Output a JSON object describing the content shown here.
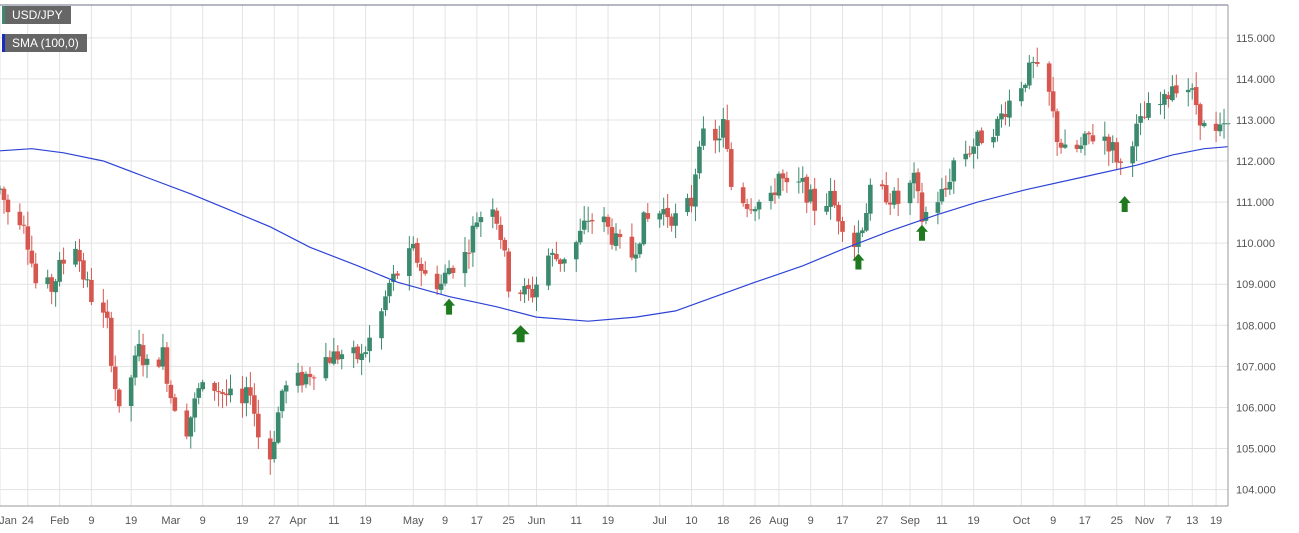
{
  "chart_data": {
    "type": "candlestick",
    "symbol": "USD/JPY",
    "indicator_label": "SMA (100,0)",
    "colors": {
      "up": "#3b8a6e",
      "down": "#d6574f",
      "sma": "#2d44d6",
      "arrow": "#1f7a1f",
      "grid": "#e3e3e3",
      "axis_text": "#555555",
      "symbol_swatch": "#3b8a6e",
      "indicator_swatch": "#1a2bc4"
    },
    "grid": true,
    "y_axis": {
      "position": "right",
      "min": 103.6,
      "max": 115.8,
      "ticks": [
        "104.000",
        "105.000",
        "106.000",
        "107.000",
        "108.000",
        "109.000",
        "110.000",
        "111.000",
        "112.000",
        "113.000",
        "114.000",
        "115.000"
      ]
    },
    "x_axis": {
      "start": "2018-01-17",
      "end": "2018-11-22",
      "ticks": [
        {
          "date": "2018-01-17",
          "label": "Jan"
        },
        {
          "date": "2018-01-24",
          "label": "24"
        },
        {
          "date": "2018-02-01",
          "label": "Feb"
        },
        {
          "date": "2018-02-09",
          "label": "9"
        },
        {
          "date": "2018-02-19",
          "label": "19"
        },
        {
          "date": "2018-03-01",
          "label": "Mar"
        },
        {
          "date": "2018-03-09",
          "label": "9"
        },
        {
          "date": "2018-03-19",
          "label": "19"
        },
        {
          "date": "2018-03-27",
          "label": "27"
        },
        {
          "date": "2018-04-02",
          "label": "Apr"
        },
        {
          "date": "2018-04-11",
          "label": "11"
        },
        {
          "date": "2018-04-19",
          "label": "19"
        },
        {
          "date": "2018-05-01",
          "label": "May"
        },
        {
          "date": "2018-05-09",
          "label": "9"
        },
        {
          "date": "2018-05-17",
          "label": "17"
        },
        {
          "date": "2018-05-25",
          "label": "25"
        },
        {
          "date": "2018-06-01",
          "label": "Jun"
        },
        {
          "date": "2018-06-11",
          "label": "11"
        },
        {
          "date": "2018-06-19",
          "label": "19"
        },
        {
          "date": "2018-07-02",
          "label": "Jul"
        },
        {
          "date": "2018-07-10",
          "label": "10"
        },
        {
          "date": "2018-07-18",
          "label": "18"
        },
        {
          "date": "2018-07-26",
          "label": "26"
        },
        {
          "date": "2018-08-01",
          "label": "Aug"
        },
        {
          "date": "2018-08-09",
          "label": "9"
        },
        {
          "date": "2018-08-17",
          "label": "17"
        },
        {
          "date": "2018-08-27",
          "label": "27"
        },
        {
          "date": "2018-09-03",
          "label": "Sep"
        },
        {
          "date": "2018-09-11",
          "label": "11"
        },
        {
          "date": "2018-09-19",
          "label": "19"
        },
        {
          "date": "2018-10-01",
          "label": "Oct"
        },
        {
          "date": "2018-10-09",
          "label": "9"
        },
        {
          "date": "2018-10-17",
          "label": "17"
        },
        {
          "date": "2018-10-25",
          "label": "25"
        },
        {
          "date": "2018-11-01",
          "label": "Nov"
        },
        {
          "date": "2018-11-07",
          "label": "7"
        },
        {
          "date": "2018-11-13",
          "label": "13"
        },
        {
          "date": "2018-11-19",
          "label": "19"
        }
      ]
    },
    "price_path": [
      [
        "2018-01-17",
        111.3
      ],
      [
        "2018-01-19",
        110.8
      ],
      [
        "2018-01-23",
        110.6
      ],
      [
        "2018-01-26",
        109.0
      ],
      [
        "2018-01-30",
        108.9
      ],
      [
        "2018-02-01",
        109.4
      ],
      [
        "2018-02-05",
        110.0
      ],
      [
        "2018-02-07",
        109.2
      ],
      [
        "2018-02-09",
        108.7
      ],
      [
        "2018-02-13",
        108.0
      ],
      [
        "2018-02-15",
        106.5
      ],
      [
        "2018-02-16",
        105.8
      ],
      [
        "2018-02-21",
        107.4
      ],
      [
        "2018-02-23",
        107.0
      ],
      [
        "2018-02-27",
        107.3
      ],
      [
        "2018-03-01",
        106.3
      ],
      [
        "2018-03-05",
        105.5
      ],
      [
        "2018-03-08",
        106.4
      ],
      [
        "2018-03-12",
        106.5
      ],
      [
        "2018-03-15",
        106.3
      ],
      [
        "2018-03-19",
        106.0
      ],
      [
        "2018-03-21",
        106.5
      ],
      [
        "2018-03-23",
        105.3
      ],
      [
        "2018-03-26",
        104.8
      ],
      [
        "2018-03-29",
        106.4
      ],
      [
        "2018-04-03",
        106.7
      ],
      [
        "2018-04-09",
        107.2
      ],
      [
        "2018-04-13",
        107.3
      ],
      [
        "2018-04-18",
        107.2
      ],
      [
        "2018-04-23",
        108.3
      ],
      [
        "2018-04-25",
        109.0
      ],
      [
        "2018-05-01",
        109.8
      ],
      [
        "2018-05-04",
        109.2
      ],
      [
        "2018-05-08",
        109.0
      ],
      [
        "2018-05-10",
        109.4
      ],
      [
        "2018-05-14",
        109.7
      ],
      [
        "2018-05-17",
        110.6
      ],
      [
        "2018-05-21",
        111.0
      ],
      [
        "2018-05-23",
        110.2
      ],
      [
        "2018-05-25",
        109.0
      ],
      [
        "2018-05-29",
        108.8
      ],
      [
        "2018-05-31",
        108.8
      ],
      [
        "2018-06-04",
        109.7
      ],
      [
        "2018-06-07",
        109.6
      ],
      [
        "2018-06-11",
        110.0
      ],
      [
        "2018-06-14",
        110.6
      ],
      [
        "2018-06-18",
        110.5
      ],
      [
        "2018-06-21",
        110.0
      ],
      [
        "2018-06-25",
        109.7
      ],
      [
        "2018-06-28",
        110.5
      ],
      [
        "2018-07-03",
        110.8
      ],
      [
        "2018-07-06",
        110.6
      ],
      [
        "2018-07-10",
        111.0
      ],
      [
        "2018-07-12",
        112.6
      ],
      [
        "2018-07-16",
        112.4
      ],
      [
        "2018-07-18",
        112.9
      ],
      [
        "2018-07-20",
        111.4
      ],
      [
        "2018-07-24",
        111.0
      ],
      [
        "2018-07-26",
        111.0
      ],
      [
        "2018-07-30",
        111.0
      ],
      [
        "2018-08-01",
        111.7
      ],
      [
        "2018-08-03",
        111.3
      ],
      [
        "2018-08-07",
        111.4
      ],
      [
        "2018-08-10",
        110.9
      ],
      [
        "2018-08-14",
        111.1
      ],
      [
        "2018-08-16",
        110.7
      ],
      [
        "2018-08-20",
        110.0
      ],
      [
        "2018-08-22",
        110.5
      ],
      [
        "2018-08-24",
        111.2
      ],
      [
        "2018-08-28",
        111.2
      ],
      [
        "2018-08-31",
        111.0
      ],
      [
        "2018-09-04",
        111.5
      ],
      [
        "2018-09-06",
        110.6
      ],
      [
        "2018-09-10",
        111.1
      ],
      [
        "2018-09-12",
        111.3
      ],
      [
        "2018-09-14",
        112.0
      ],
      [
        "2018-09-18",
        112.3
      ],
      [
        "2018-09-21",
        112.6
      ],
      [
        "2018-09-25",
        112.9
      ],
      [
        "2018-09-27",
        113.3
      ],
      [
        "2018-10-01",
        113.9
      ],
      [
        "2018-10-04",
        114.3
      ],
      [
        "2018-10-08",
        113.6
      ],
      [
        "2018-10-10",
        112.6
      ],
      [
        "2018-10-12",
        112.2
      ],
      [
        "2018-10-16",
        112.3
      ],
      [
        "2018-10-18",
        112.6
      ],
      [
        "2018-10-22",
        112.6
      ],
      [
        "2018-10-24",
        112.3
      ],
      [
        "2018-10-26",
        111.9
      ],
      [
        "2018-10-29",
        112.6
      ],
      [
        "2018-10-31",
        112.9
      ],
      [
        "2018-11-02",
        113.2
      ],
      [
        "2018-11-06",
        113.4
      ],
      [
        "2018-11-08",
        113.9
      ],
      [
        "2018-11-12",
        113.8
      ],
      [
        "2018-11-14",
        113.4
      ],
      [
        "2018-11-16",
        112.8
      ],
      [
        "2018-11-19",
        112.6
      ],
      [
        "2018-11-21",
        112.8
      ]
    ],
    "sma_series": [
      [
        "2018-01-17",
        112.25
      ],
      [
        "2018-01-25",
        112.3
      ],
      [
        "2018-02-02",
        112.2
      ],
      [
        "2018-02-12",
        112.0
      ],
      [
        "2018-02-23",
        111.6
      ],
      [
        "2018-03-06",
        111.2
      ],
      [
        "2018-03-16",
        110.8
      ],
      [
        "2018-03-26",
        110.4
      ],
      [
        "2018-04-05",
        109.9
      ],
      [
        "2018-04-17",
        109.45
      ],
      [
        "2018-04-27",
        109.05
      ],
      [
        "2018-05-10",
        108.7
      ],
      [
        "2018-05-22",
        108.45
      ],
      [
        "2018-06-01",
        108.2
      ],
      [
        "2018-06-14",
        108.1
      ],
      [
        "2018-06-26",
        108.2
      ],
      [
        "2018-07-06",
        108.35
      ],
      [
        "2018-07-16",
        108.7
      ],
      [
        "2018-07-26",
        109.05
      ],
      [
        "2018-08-07",
        109.45
      ],
      [
        "2018-08-17",
        109.85
      ],
      [
        "2018-08-29",
        110.3
      ],
      [
        "2018-09-10",
        110.7
      ],
      [
        "2018-09-20",
        111.0
      ],
      [
        "2018-10-02",
        111.3
      ],
      [
        "2018-10-16",
        111.6
      ],
      [
        "2018-10-30",
        111.9
      ],
      [
        "2018-11-08",
        112.15
      ],
      [
        "2018-11-16",
        112.3
      ],
      [
        "2018-11-22",
        112.35
      ]
    ],
    "arrows": [
      {
        "date": "2018-05-10",
        "value": 108.65,
        "size": "small"
      },
      {
        "date": "2018-05-28",
        "value": 108.0,
        "size": "large"
      },
      {
        "date": "2018-08-21",
        "value": 109.75,
        "size": "small"
      },
      {
        "date": "2018-09-06",
        "value": 110.45,
        "size": "small"
      },
      {
        "date": "2018-10-27",
        "value": 111.15,
        "size": "small"
      }
    ]
  }
}
